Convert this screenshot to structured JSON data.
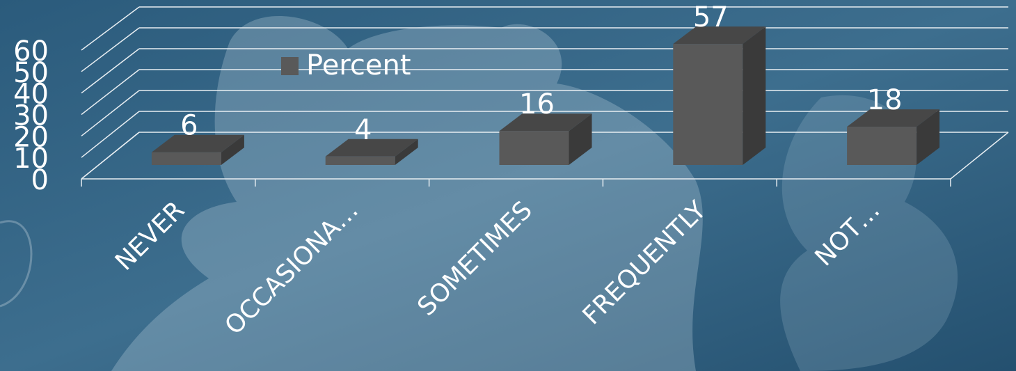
{
  "chart_data": {
    "type": "bar3d",
    "categories": [
      "NEVER",
      "OCCASIONA…",
      "SOMETIMES",
      "FREQUENTLY",
      "NOT…"
    ],
    "series": [
      {
        "name": "Percent",
        "color": "#595959",
        "values": [
          6,
          4,
          16,
          57,
          18
        ]
      }
    ],
    "ylim": [
      0,
      60
    ],
    "yticks": [
      0,
      10,
      20,
      30,
      40,
      50,
      60
    ],
    "grid": true
  }
}
